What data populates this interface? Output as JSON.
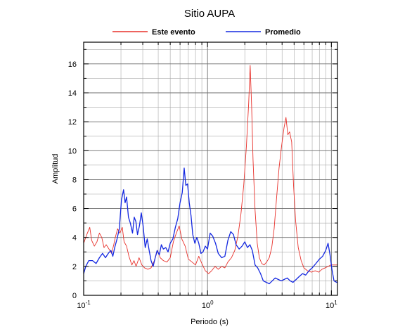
{
  "chart_data": {
    "type": "line",
    "title": "Sitio AUPA",
    "xlabel": "Periodo (s)",
    "ylabel": "Amplitud",
    "x_scale": "log",
    "xlim": [
      0.1,
      11.2
    ],
    "ylim": [
      0,
      17.5
    ],
    "x_ticks": [
      {
        "value": 0.1,
        "mantissa": "10",
        "exponent": "-1"
      },
      {
        "value": 1,
        "mantissa": "10",
        "exponent": "0"
      },
      {
        "value": 10,
        "mantissa": "10",
        "exponent": "1"
      }
    ],
    "y_ticks": [
      0,
      2,
      4,
      6,
      8,
      10,
      12,
      14,
      16
    ],
    "grid": true,
    "legend_position": "top",
    "series": [
      {
        "name": "Este evento",
        "color": "#e8302a",
        "points": [
          [
            0.1,
            3.6
          ],
          [
            0.106,
            4.2
          ],
          [
            0.112,
            4.7
          ],
          [
            0.116,
            3.8
          ],
          [
            0.122,
            3.4
          ],
          [
            0.128,
            3.7
          ],
          [
            0.134,
            4.3
          ],
          [
            0.14,
            4.0
          ],
          [
            0.146,
            3.3
          ],
          [
            0.152,
            3.5
          ],
          [
            0.16,
            3.2
          ],
          [
            0.168,
            2.9
          ],
          [
            0.175,
            3.5
          ],
          [
            0.18,
            4.0
          ],
          [
            0.188,
            4.6
          ],
          [
            0.196,
            4.3
          ],
          [
            0.205,
            4.7
          ],
          [
            0.212,
            3.7
          ],
          [
            0.222,
            3.4
          ],
          [
            0.232,
            2.7
          ],
          [
            0.245,
            2.1
          ],
          [
            0.255,
            2.4
          ],
          [
            0.265,
            2.0
          ],
          [
            0.28,
            2.6
          ],
          [
            0.295,
            2.1
          ],
          [
            0.31,
            1.9
          ],
          [
            0.33,
            1.8
          ],
          [
            0.35,
            1.9
          ],
          [
            0.372,
            2.4
          ],
          [
            0.395,
            3.1
          ],
          [
            0.415,
            2.6
          ],
          [
            0.44,
            2.4
          ],
          [
            0.47,
            2.3
          ],
          [
            0.5,
            2.6
          ],
          [
            0.53,
            3.7
          ],
          [
            0.56,
            4.3
          ],
          [
            0.59,
            4.8
          ],
          [
            0.62,
            3.9
          ],
          [
            0.66,
            3.4
          ],
          [
            0.7,
            2.5
          ],
          [
            0.75,
            2.3
          ],
          [
            0.8,
            2.1
          ],
          [
            0.85,
            2.7
          ],
          [
            0.9,
            2.2
          ],
          [
            0.96,
            1.7
          ],
          [
            1.02,
            1.5
          ],
          [
            1.08,
            1.7
          ],
          [
            1.15,
            2.0
          ],
          [
            1.22,
            1.8
          ],
          [
            1.3,
            2.0
          ],
          [
            1.38,
            1.9
          ],
          [
            1.46,
            2.3
          ],
          [
            1.56,
            2.6
          ],
          [
            1.66,
            3.1
          ],
          [
            1.76,
            4.1
          ],
          [
            1.86,
            5.6
          ],
          [
            1.96,
            7.6
          ],
          [
            2.06,
            10.3
          ],
          [
            2.15,
            13.3
          ],
          [
            2.21,
            15.9
          ],
          [
            2.27,
            13.1
          ],
          [
            2.33,
            9.4
          ],
          [
            2.42,
            5.9
          ],
          [
            2.52,
            3.6
          ],
          [
            2.62,
            2.6
          ],
          [
            2.74,
            2.2
          ],
          [
            2.86,
            2.1
          ],
          [
            3.0,
            2.3
          ],
          [
            3.15,
            2.6
          ],
          [
            3.3,
            3.3
          ],
          [
            3.45,
            4.6
          ],
          [
            3.6,
            6.6
          ],
          [
            3.78,
            8.8
          ],
          [
            3.96,
            10.3
          ],
          [
            4.15,
            11.6
          ],
          [
            4.3,
            12.3
          ],
          [
            4.45,
            11.1
          ],
          [
            4.6,
            11.3
          ],
          [
            4.78,
            10.6
          ],
          [
            4.95,
            7.6
          ],
          [
            5.15,
            5.1
          ],
          [
            5.4,
            3.3
          ],
          [
            5.7,
            2.4
          ],
          [
            6.0,
            1.9
          ],
          [
            6.4,
            1.7
          ],
          [
            6.9,
            1.6
          ],
          [
            7.4,
            1.7
          ],
          [
            7.9,
            1.6
          ],
          [
            8.4,
            1.8
          ],
          [
            8.9,
            1.9
          ],
          [
            9.4,
            2.0
          ],
          [
            9.9,
            2.1
          ],
          [
            10.5,
            2.1
          ],
          [
            11.2,
            2.1
          ]
        ]
      },
      {
        "name": "Promedio",
        "color": "#1428e0",
        "points": [
          [
            0.1,
            1.5
          ],
          [
            0.104,
            2.0
          ],
          [
            0.11,
            2.4
          ],
          [
            0.118,
            2.4
          ],
          [
            0.126,
            2.2
          ],
          [
            0.134,
            2.6
          ],
          [
            0.142,
            2.9
          ],
          [
            0.15,
            2.6
          ],
          [
            0.158,
            2.9
          ],
          [
            0.166,
            3.1
          ],
          [
            0.172,
            2.7
          ],
          [
            0.178,
            3.3
          ],
          [
            0.186,
            3.9
          ],
          [
            0.194,
            4.6
          ],
          [
            0.202,
            6.6
          ],
          [
            0.21,
            7.3
          ],
          [
            0.216,
            6.4
          ],
          [
            0.222,
            6.8
          ],
          [
            0.23,
            5.4
          ],
          [
            0.238,
            5.0
          ],
          [
            0.248,
            4.3
          ],
          [
            0.256,
            5.4
          ],
          [
            0.264,
            5.1
          ],
          [
            0.272,
            4.2
          ],
          [
            0.282,
            4.8
          ],
          [
            0.292,
            5.7
          ],
          [
            0.302,
            4.8
          ],
          [
            0.314,
            3.3
          ],
          [
            0.326,
            3.9
          ],
          [
            0.338,
            3.1
          ],
          [
            0.35,
            2.4
          ],
          [
            0.364,
            2.0
          ],
          [
            0.378,
            2.6
          ],
          [
            0.392,
            3.1
          ],
          [
            0.408,
            2.8
          ],
          [
            0.424,
            3.5
          ],
          [
            0.44,
            3.2
          ],
          [
            0.46,
            3.3
          ],
          [
            0.48,
            3.0
          ],
          [
            0.5,
            3.6
          ],
          [
            0.525,
            3.9
          ],
          [
            0.55,
            4.7
          ],
          [
            0.575,
            5.3
          ],
          [
            0.6,
            6.4
          ],
          [
            0.625,
            7.1
          ],
          [
            0.648,
            8.8
          ],
          [
            0.668,
            7.6
          ],
          [
            0.69,
            7.7
          ],
          [
            0.712,
            6.4
          ],
          [
            0.736,
            5.5
          ],
          [
            0.76,
            4.2
          ],
          [
            0.79,
            3.6
          ],
          [
            0.82,
            4.0
          ],
          [
            0.85,
            3.6
          ],
          [
            0.885,
            2.9
          ],
          [
            0.92,
            3.0
          ],
          [
            0.96,
            3.4
          ],
          [
            1.0,
            3.2
          ],
          [
            1.05,
            4.3
          ],
          [
            1.1,
            4.1
          ],
          [
            1.16,
            3.6
          ],
          [
            1.22,
            2.9
          ],
          [
            1.3,
            2.6
          ],
          [
            1.38,
            2.7
          ],
          [
            1.46,
            3.8
          ],
          [
            1.54,
            4.4
          ],
          [
            1.62,
            4.2
          ],
          [
            1.7,
            3.5
          ],
          [
            1.8,
            3.2
          ],
          [
            1.9,
            3.4
          ],
          [
            2.0,
            3.7
          ],
          [
            2.1,
            3.3
          ],
          [
            2.2,
            3.5
          ],
          [
            2.3,
            3.1
          ],
          [
            2.42,
            2.1
          ],
          [
            2.54,
            1.9
          ],
          [
            2.68,
            1.5
          ],
          [
            2.82,
            1.0
          ],
          [
            2.98,
            0.9
          ],
          [
            3.15,
            0.8
          ],
          [
            3.33,
            1.0
          ],
          [
            3.52,
            1.2
          ],
          [
            3.72,
            1.1
          ],
          [
            3.94,
            1.0
          ],
          [
            4.16,
            1.1
          ],
          [
            4.4,
            1.2
          ],
          [
            4.65,
            1.0
          ],
          [
            4.9,
            0.9
          ],
          [
            5.2,
            1.1
          ],
          [
            5.5,
            1.3
          ],
          [
            5.85,
            1.5
          ],
          [
            6.2,
            1.4
          ],
          [
            6.6,
            1.7
          ],
          [
            7.0,
            1.9
          ],
          [
            7.5,
            2.2
          ],
          [
            8.0,
            2.5
          ],
          [
            8.5,
            2.7
          ],
          [
            9.0,
            3.1
          ],
          [
            9.4,
            3.6
          ],
          [
            9.75,
            2.8
          ],
          [
            10.1,
            1.8
          ],
          [
            10.5,
            1.0
          ],
          [
            11.0,
            0.9
          ],
          [
            11.2,
            0.9
          ]
        ]
      }
    ]
  }
}
